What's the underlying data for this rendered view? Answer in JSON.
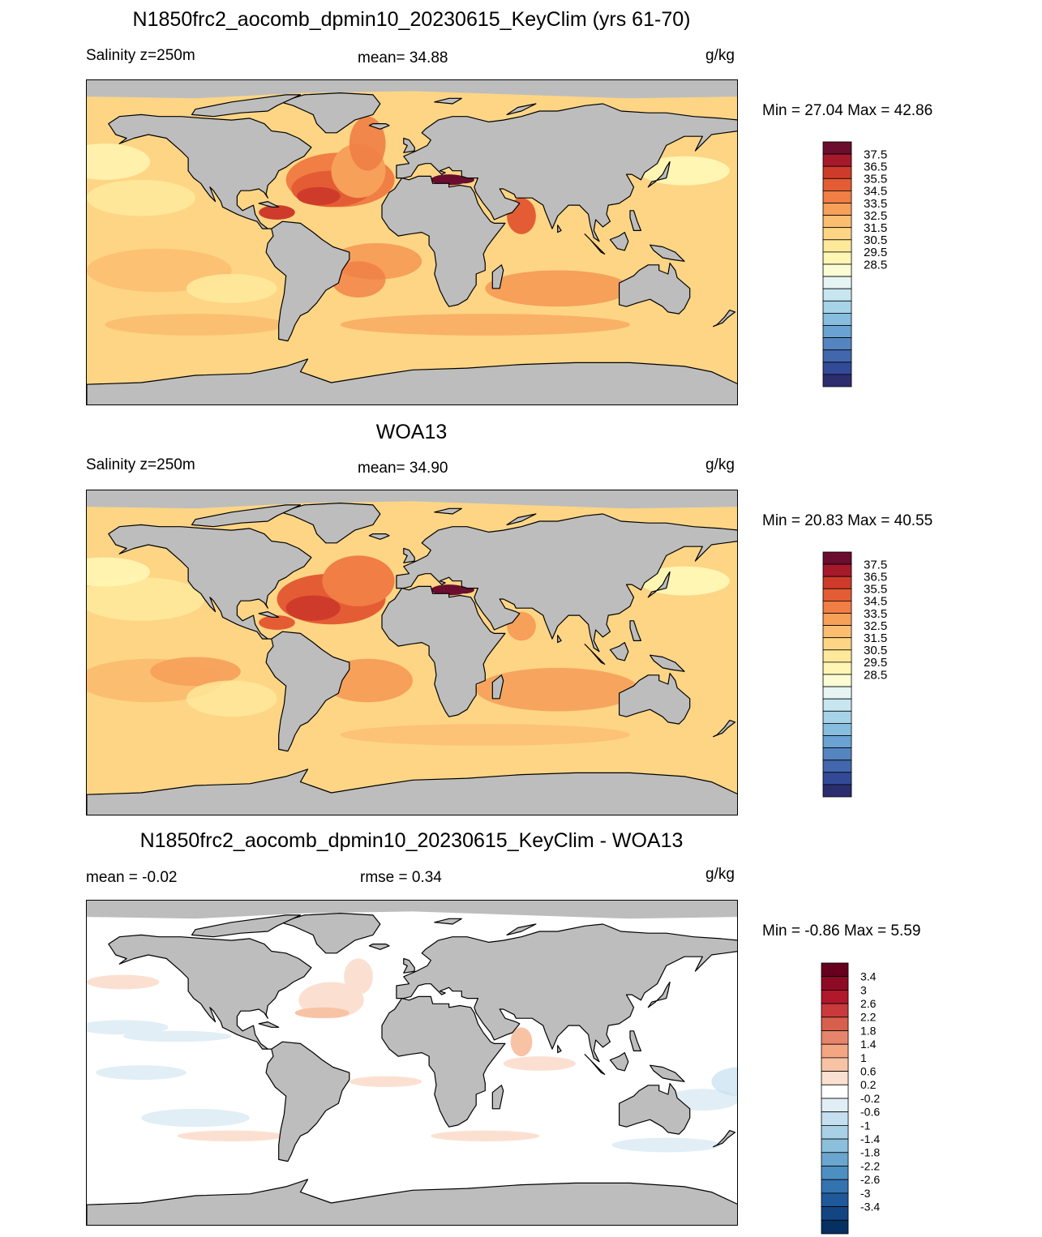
{
  "panels": [
    {
      "title": "N1850frc2_aocomb_dpmin10_20230615_KeyClim (yrs 61-70)",
      "left_label": "Salinity z=250m",
      "center_label": "mean=  34.88",
      "right_label": "g/kg",
      "minmax": "Min =  27.04 Max =  42.86",
      "field": "salinity_model"
    },
    {
      "title": "WOA13",
      "left_label": "Salinity z=250m",
      "center_label": "mean=  34.90",
      "right_label": "g/kg",
      "minmax": "Min =  20.83 Max =  40.55",
      "field": "salinity_obs"
    },
    {
      "title": "N1850frc2_aocomb_dpmin10_20230615_KeyClim - WOA13",
      "left_label": "mean =  -0.02",
      "center_label": "rmse =   0.34",
      "right_label": "g/kg",
      "minmax": "Min =  -0.86 Max =   5.59",
      "field": "difference"
    }
  ],
  "colorbars": {
    "salinity": {
      "ticks": [
        "37.5",
        "36.5",
        "35.5",
        "34.5",
        "33.5",
        "32.5",
        "31.5",
        "30.5",
        "29.5",
        "28.5"
      ],
      "colors": [
        "#6a0d2e",
        "#a5192b",
        "#cf3b2b",
        "#e45c34",
        "#f07e45",
        "#f6a05a",
        "#fbbd70",
        "#fdd585",
        "#fee99b",
        "#fff6b4",
        "#fbfbd4",
        "#e6f4f4",
        "#c7e6f0",
        "#a6d3e8",
        "#87bedf",
        "#6aa3d3",
        "#5585c1",
        "#4267ad",
        "#334a97",
        "#2c2d6e"
      ]
    },
    "difference": {
      "ticks": [
        "3.4",
        "3",
        "2.6",
        "2.2",
        "1.8",
        "1.4",
        "1",
        "0.6",
        "0.2",
        "-0.2",
        "-0.6",
        "-1",
        "-1.4",
        "-1.8",
        "-2.2",
        "-2.6",
        "-3",
        "-3.4"
      ],
      "colors": [
        "#67001f",
        "#8e0b25",
        "#b2182b",
        "#c93a3d",
        "#d6604d",
        "#e6856c",
        "#f4a582",
        "#f8c3a5",
        "#fbe0d1",
        "#ffffff",
        "#e1eef5",
        "#c5dff0",
        "#a8d0e6",
        "#8bbfdc",
        "#6aa6cf",
        "#4d8fc1",
        "#3373b0",
        "#20599a",
        "#134583",
        "#053061"
      ]
    }
  },
  "colors": {
    "land": "#bdbdbd",
    "coastline": "#000000"
  }
}
